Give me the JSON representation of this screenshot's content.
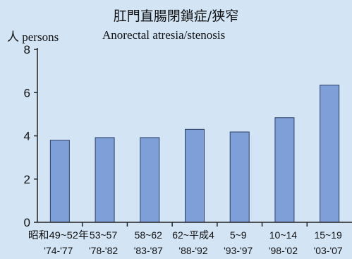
{
  "chart_data": {
    "type": "bar",
    "title": "肛門直腸閉鎖症/狭窄",
    "subtitle": "Anorectal atresia/stenosis",
    "ylabel": "人 persons",
    "ylim": [
      0,
      8
    ],
    "yticks": [
      0,
      2,
      4,
      6,
      8
    ],
    "categories": [
      "昭和49~52年",
      "53~57",
      "58~62",
      "62~平成4",
      "5~9",
      "10~14",
      "15~19"
    ],
    "categories_years": [
      "'74-'77",
      "'78-'82",
      "'83-'87",
      "'88-'92",
      "'93-'97",
      "'98-'02",
      "'03-'07"
    ],
    "values": [
      3.8,
      3.92,
      3.92,
      4.3,
      4.18,
      4.84,
      6.35
    ],
    "grid": false,
    "colors": {
      "bar": "#7f9fd8",
      "bar_stroke": "#2b3f66",
      "background": "#d3e4f5",
      "axis": "#222222"
    }
  }
}
